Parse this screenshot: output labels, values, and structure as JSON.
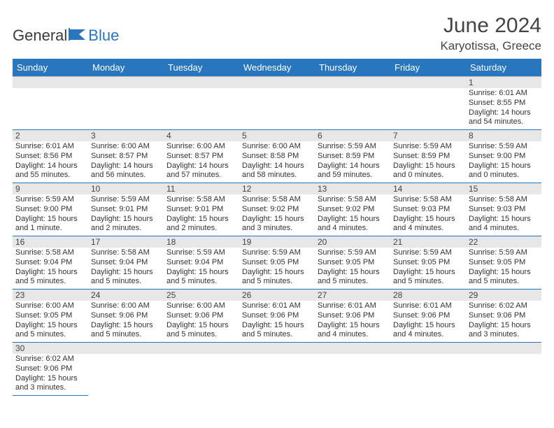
{
  "brand": {
    "part1": "General",
    "part2": "Blue"
  },
  "title": "June 2024",
  "location": "Karyotissa, Greece",
  "colors": {
    "header_bg": "#2876bd",
    "header_fg": "#ffffff",
    "daynum_bg": "#e7e7e7",
    "row_divider": "#2876bd",
    "text": "#333333"
  },
  "day_names": [
    "Sunday",
    "Monday",
    "Tuesday",
    "Wednesday",
    "Thursday",
    "Friday",
    "Saturday"
  ],
  "weeks": [
    [
      null,
      null,
      null,
      null,
      null,
      null,
      {
        "n": "1",
        "sunrise": "Sunrise: 6:01 AM",
        "sunset": "Sunset: 8:55 PM",
        "day": "Daylight: 14 hours and 54 minutes."
      }
    ],
    [
      {
        "n": "2",
        "sunrise": "Sunrise: 6:01 AM",
        "sunset": "Sunset: 8:56 PM",
        "day": "Daylight: 14 hours and 55 minutes."
      },
      {
        "n": "3",
        "sunrise": "Sunrise: 6:00 AM",
        "sunset": "Sunset: 8:57 PM",
        "day": "Daylight: 14 hours and 56 minutes."
      },
      {
        "n": "4",
        "sunrise": "Sunrise: 6:00 AM",
        "sunset": "Sunset: 8:57 PM",
        "day": "Daylight: 14 hours and 57 minutes."
      },
      {
        "n": "5",
        "sunrise": "Sunrise: 6:00 AM",
        "sunset": "Sunset: 8:58 PM",
        "day": "Daylight: 14 hours and 58 minutes."
      },
      {
        "n": "6",
        "sunrise": "Sunrise: 5:59 AM",
        "sunset": "Sunset: 8:59 PM",
        "day": "Daylight: 14 hours and 59 minutes."
      },
      {
        "n": "7",
        "sunrise": "Sunrise: 5:59 AM",
        "sunset": "Sunset: 8:59 PM",
        "day": "Daylight: 15 hours and 0 minutes."
      },
      {
        "n": "8",
        "sunrise": "Sunrise: 5:59 AM",
        "sunset": "Sunset: 9:00 PM",
        "day": "Daylight: 15 hours and 0 minutes."
      }
    ],
    [
      {
        "n": "9",
        "sunrise": "Sunrise: 5:59 AM",
        "sunset": "Sunset: 9:00 PM",
        "day": "Daylight: 15 hours and 1 minute."
      },
      {
        "n": "10",
        "sunrise": "Sunrise: 5:59 AM",
        "sunset": "Sunset: 9:01 PM",
        "day": "Daylight: 15 hours and 2 minutes."
      },
      {
        "n": "11",
        "sunrise": "Sunrise: 5:58 AM",
        "sunset": "Sunset: 9:01 PM",
        "day": "Daylight: 15 hours and 2 minutes."
      },
      {
        "n": "12",
        "sunrise": "Sunrise: 5:58 AM",
        "sunset": "Sunset: 9:02 PM",
        "day": "Daylight: 15 hours and 3 minutes."
      },
      {
        "n": "13",
        "sunrise": "Sunrise: 5:58 AM",
        "sunset": "Sunset: 9:02 PM",
        "day": "Daylight: 15 hours and 4 minutes."
      },
      {
        "n": "14",
        "sunrise": "Sunrise: 5:58 AM",
        "sunset": "Sunset: 9:03 PM",
        "day": "Daylight: 15 hours and 4 minutes."
      },
      {
        "n": "15",
        "sunrise": "Sunrise: 5:58 AM",
        "sunset": "Sunset: 9:03 PM",
        "day": "Daylight: 15 hours and 4 minutes."
      }
    ],
    [
      {
        "n": "16",
        "sunrise": "Sunrise: 5:58 AM",
        "sunset": "Sunset: 9:04 PM",
        "day": "Daylight: 15 hours and 5 minutes."
      },
      {
        "n": "17",
        "sunrise": "Sunrise: 5:58 AM",
        "sunset": "Sunset: 9:04 PM",
        "day": "Daylight: 15 hours and 5 minutes."
      },
      {
        "n": "18",
        "sunrise": "Sunrise: 5:59 AM",
        "sunset": "Sunset: 9:04 PM",
        "day": "Daylight: 15 hours and 5 minutes."
      },
      {
        "n": "19",
        "sunrise": "Sunrise: 5:59 AM",
        "sunset": "Sunset: 9:05 PM",
        "day": "Daylight: 15 hours and 5 minutes."
      },
      {
        "n": "20",
        "sunrise": "Sunrise: 5:59 AM",
        "sunset": "Sunset: 9:05 PM",
        "day": "Daylight: 15 hours and 5 minutes."
      },
      {
        "n": "21",
        "sunrise": "Sunrise: 5:59 AM",
        "sunset": "Sunset: 9:05 PM",
        "day": "Daylight: 15 hours and 5 minutes."
      },
      {
        "n": "22",
        "sunrise": "Sunrise: 5:59 AM",
        "sunset": "Sunset: 9:05 PM",
        "day": "Daylight: 15 hours and 5 minutes."
      }
    ],
    [
      {
        "n": "23",
        "sunrise": "Sunrise: 6:00 AM",
        "sunset": "Sunset: 9:05 PM",
        "day": "Daylight: 15 hours and 5 minutes."
      },
      {
        "n": "24",
        "sunrise": "Sunrise: 6:00 AM",
        "sunset": "Sunset: 9:06 PM",
        "day": "Daylight: 15 hours and 5 minutes."
      },
      {
        "n": "25",
        "sunrise": "Sunrise: 6:00 AM",
        "sunset": "Sunset: 9:06 PM",
        "day": "Daylight: 15 hours and 5 minutes."
      },
      {
        "n": "26",
        "sunrise": "Sunrise: 6:01 AM",
        "sunset": "Sunset: 9:06 PM",
        "day": "Daylight: 15 hours and 5 minutes."
      },
      {
        "n": "27",
        "sunrise": "Sunrise: 6:01 AM",
        "sunset": "Sunset: 9:06 PM",
        "day": "Daylight: 15 hours and 4 minutes."
      },
      {
        "n": "28",
        "sunrise": "Sunrise: 6:01 AM",
        "sunset": "Sunset: 9:06 PM",
        "day": "Daylight: 15 hours and 4 minutes."
      },
      {
        "n": "29",
        "sunrise": "Sunrise: 6:02 AM",
        "sunset": "Sunset: 9:06 PM",
        "day": "Daylight: 15 hours and 3 minutes."
      }
    ],
    [
      {
        "n": "30",
        "sunrise": "Sunrise: 6:02 AM",
        "sunset": "Sunset: 9:06 PM",
        "day": "Daylight: 15 hours and 3 minutes."
      },
      null,
      null,
      null,
      null,
      null,
      null
    ]
  ]
}
